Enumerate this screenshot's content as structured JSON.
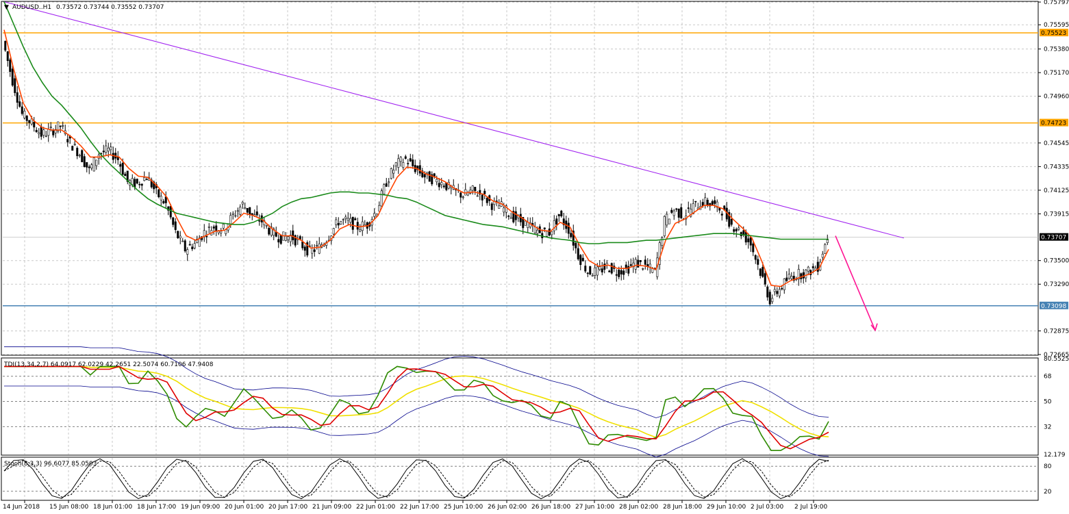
{
  "header": {
    "symbol": "AUDUSD..H1",
    "ohlc": "0.73572 0.73744 0.73552 0.73707"
  },
  "colors": {
    "bull_candle": "#000000",
    "bear_candle": "#000000",
    "ma_fast": "#ff4500",
    "ma_slow": "#1a8a1a",
    "resistance": "#ffa500",
    "support": "#4682b4",
    "trendline": "#a020f0",
    "arrow": "#ff1493",
    "tdi_price": "#2e8b00",
    "tdi_signal": "#e00000",
    "tdi_market": "#f0e000",
    "tdi_band": "#00008b",
    "stoch_main": "#000000"
  },
  "chart_data": [
    {
      "type": "candlestick",
      "title": "AUDUSD..H1",
      "ylim": [
        0.72665,
        0.75797
      ],
      "yticks": [
        "0.75797",
        "0.75595",
        "0.75380",
        "0.75170",
        "0.74960",
        "0.74545",
        "0.74335",
        "0.74125",
        "0.73915",
        "0.73500",
        "0.73290",
        "0.72875",
        "0.72665"
      ],
      "x_labels": [
        "14 Jun 2018",
        "15 Jun 08:00",
        "18 Jun 01:00",
        "18 Jun 17:00",
        "19 Jun 09:00",
        "20 Jun 01:00",
        "20 Jun 17:00",
        "21 Jun 09:00",
        "22 Jun 01:00",
        "22 Jun 17:00",
        "25 Jun 10:00",
        "26 Jun 02:00",
        "26 Jun 18:00",
        "27 Jun 10:00",
        "28 Jun 02:00",
        "28 Jun 18:00",
        "29 Jun 10:00",
        "2 Jul 03:00",
        "2 Jul 19:00"
      ],
      "close_path": [
        0.7545,
        0.751,
        0.748,
        0.7472,
        0.7462,
        0.7465,
        0.747,
        0.7455,
        0.7445,
        0.743,
        0.7445,
        0.7448,
        0.744,
        0.742,
        0.7418,
        0.7425,
        0.741,
        0.74,
        0.7375,
        0.736,
        0.7365,
        0.7375,
        0.738,
        0.7378,
        0.739,
        0.74,
        0.739,
        0.7385,
        0.7375,
        0.737,
        0.7372,
        0.7365,
        0.7358,
        0.7362,
        0.7372,
        0.7385,
        0.7385,
        0.738,
        0.7382,
        0.7395,
        0.742,
        0.7435,
        0.744,
        0.7432,
        0.7425,
        0.7422,
        0.7418,
        0.7412,
        0.7408,
        0.7412,
        0.7408,
        0.74,
        0.7398,
        0.739,
        0.7385,
        0.738,
        0.7375,
        0.7375,
        0.739,
        0.7378,
        0.7355,
        0.734,
        0.734,
        0.7345,
        0.734,
        0.7342,
        0.7348,
        0.7345,
        0.734,
        0.7385,
        0.7395,
        0.739,
        0.7398,
        0.7402,
        0.74,
        0.7395,
        0.7382,
        0.7375,
        0.7365,
        0.734,
        0.7315,
        0.7325,
        0.7335,
        0.7338,
        0.734,
        0.7345,
        0.7371
      ],
      "series": [
        {
          "name": "",
          "kind": "ma_fast",
          "values": [
            0.7555,
            0.752,
            0.749,
            0.7475,
            0.7468,
            0.7466,
            0.7466,
            0.746,
            0.7452,
            0.7442,
            0.7442,
            0.7444,
            0.7442,
            0.7432,
            0.7425,
            0.7424,
            0.7416,
            0.7406,
            0.7388,
            0.7372,
            0.7368,
            0.7372,
            0.7376,
            0.7377,
            0.7384,
            0.7392,
            0.739,
            0.7386,
            0.7378,
            0.7372,
            0.7372,
            0.7368,
            0.7361,
            0.7362,
            0.7368,
            0.7378,
            0.7382,
            0.738,
            0.7381,
            0.739,
            0.7408,
            0.7424,
            0.7433,
            0.7432,
            0.7427,
            0.7424,
            0.742,
            0.7414,
            0.741,
            0.7411,
            0.7409,
            0.7403,
            0.74,
            0.7393,
            0.7388,
            0.7382,
            0.7377,
            0.7376,
            0.7384,
            0.738,
            0.7364,
            0.735,
            0.7345,
            0.7346,
            0.7343,
            0.7343,
            0.7346,
            0.7345,
            0.7342,
            0.7368,
            0.7383,
            0.7387,
            0.7393,
            0.7399,
            0.7399,
            0.7396,
            0.7387,
            0.7379,
            0.737,
            0.735,
            0.7328,
            0.7327,
            0.7332,
            0.7335,
            0.7338,
            0.7343,
            0.736
          ]
        },
        {
          "name": "",
          "kind": "ma_slow",
          "values": [
            0.758,
            0.756,
            0.754,
            0.7522,
            0.7508,
            0.7496,
            0.7488,
            0.7478,
            0.7468,
            0.7456,
            0.7445,
            0.7436,
            0.7428,
            0.742,
            0.7412,
            0.7405,
            0.74,
            0.7396,
            0.7392,
            0.739,
            0.7388,
            0.7386,
            0.7384,
            0.7383,
            0.7382,
            0.7382,
            0.7384,
            0.7388,
            0.7392,
            0.7398,
            0.7402,
            0.7405,
            0.7406,
            0.7408,
            0.741,
            0.7411,
            0.7411,
            0.741,
            0.741,
            0.7409,
            0.7408,
            0.7406,
            0.7405,
            0.7402,
            0.7398,
            0.7394,
            0.739,
            0.7388,
            0.7386,
            0.7384,
            0.7382,
            0.7381,
            0.738,
            0.7378,
            0.7376,
            0.7374,
            0.7372,
            0.737,
            0.7369,
            0.7368,
            0.7366,
            0.7365,
            0.7365,
            0.7366,
            0.7366,
            0.7366,
            0.7367,
            0.7368,
            0.7368,
            0.7369,
            0.737,
            0.7371,
            0.7372,
            0.7373,
            0.7374,
            0.7374,
            0.7374,
            0.7373,
            0.7372,
            0.7371,
            0.737,
            0.7369,
            0.7369,
            0.7369,
            0.7369,
            0.7369,
            0.7369
          ]
        }
      ],
      "levels": [
        {
          "kind": "resistance",
          "value": 0.75523,
          "label": "0.75523"
        },
        {
          "kind": "resistance",
          "value": 0.74723,
          "label": "0.74723"
        },
        {
          "kind": "support",
          "value": 0.73098,
          "label": "0.73098"
        },
        {
          "kind": "current",
          "value": 0.73707,
          "label": "0.73707"
        }
      ],
      "trendline": {
        "from": [
          0,
          0.758
        ],
        "to": [
          92,
          0.737
        ]
      },
      "arrow": {
        "from": [
          85.5,
          0.7372
        ],
        "to": [
          90.5,
          0.7288
        ]
      }
    },
    {
      "type": "line",
      "title": "TDI(13,34,2,7) 64.0917 62.0229 42.2651 22.5074 60.7106 47.9408",
      "ylim": [
        12.179,
        80.5525
      ],
      "yticks": [
        "80.5525",
        "68",
        "50",
        "32",
        "12.179"
      ],
      "levels": [
        68,
        50,
        32
      ]
    },
    {
      "type": "line",
      "title": "Stoch(8,3,3) 96.6077 85.0503",
      "ylim": [
        0,
        100
      ],
      "yticks": [
        "80",
        "20"
      ],
      "levels": [
        80,
        20
      ]
    }
  ]
}
